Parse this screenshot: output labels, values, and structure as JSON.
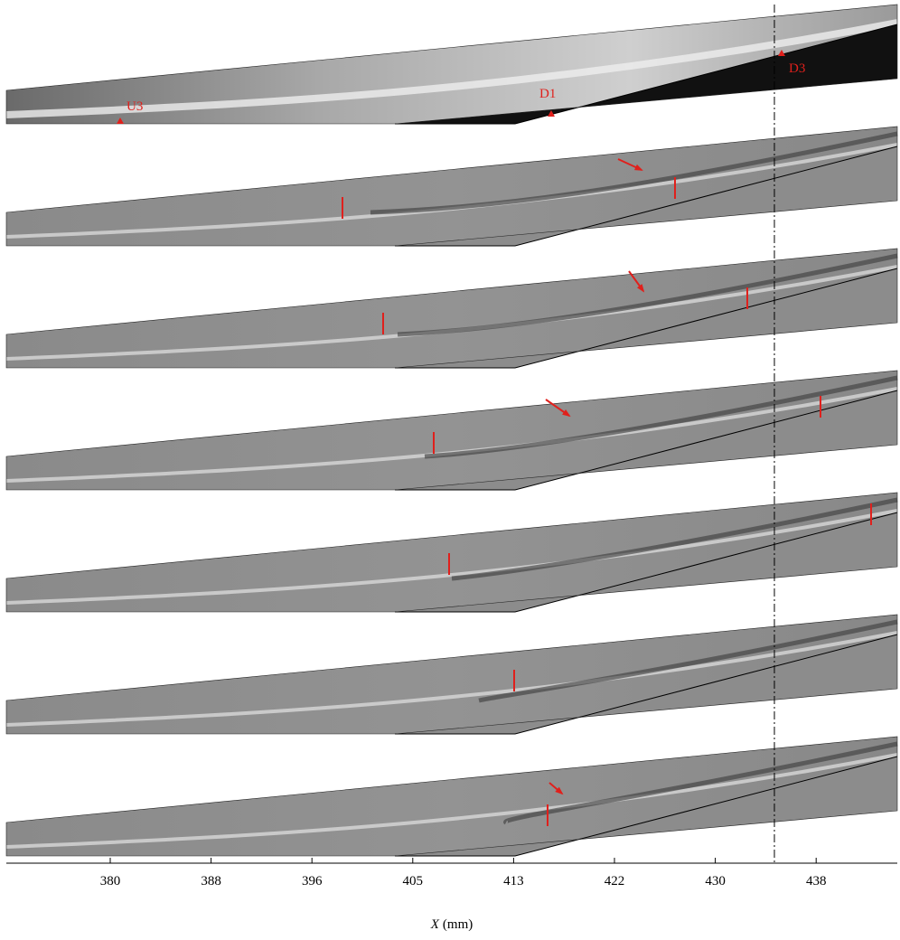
{
  "figure": {
    "markers": [
      "U3",
      "D1",
      "D3"
    ],
    "x_axis": {
      "ticks": [
        380,
        388,
        396,
        405,
        413,
        422,
        430,
        438
      ],
      "title_var": "X",
      "title_unit": "(mm)"
    }
  }
}
